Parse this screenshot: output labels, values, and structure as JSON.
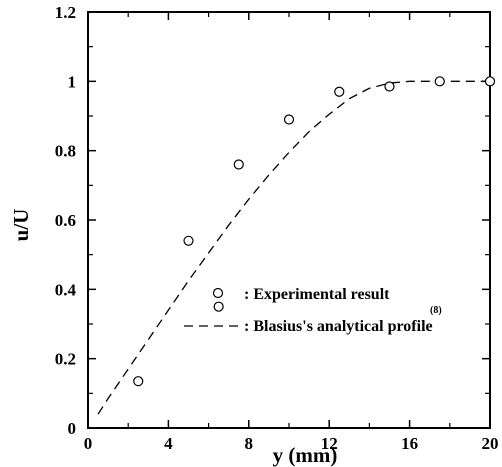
{
  "chart_data": {
    "type": "scatter",
    "xlabel": "y (mm)",
    "ylabel": "u/U",
    "xlim": [
      0,
      20
    ],
    "ylim": [
      0,
      1.2
    ],
    "xticks": [
      "0",
      "4",
      "8",
      "12",
      "16",
      "20"
    ],
    "yticks": [
      "0",
      "0.2",
      "0.4",
      "0.6",
      "0.8",
      "1",
      "1.2"
    ],
    "grid": false,
    "legend_position": "lower-right",
    "series": [
      {
        "name": ": Experimental result",
        "marker": "open-circle",
        "x": [
          2.5,
          5.0,
          6.5,
          7.5,
          10.0,
          12.5,
          15.0,
          17.5,
          20.0
        ],
        "y": [
          0.135,
          0.54,
          0.35,
          0.76,
          0.89,
          0.97,
          0.985,
          1.0,
          1.0
        ]
      },
      {
        "name": ": Blasius's analytical profile",
        "line": "dashed",
        "x": [
          0.5,
          1,
          2,
          3,
          4,
          5,
          6,
          7,
          8,
          9,
          10,
          11,
          12,
          13,
          14,
          15,
          16,
          17,
          18,
          19,
          20
        ],
        "y": [
          0.04,
          0.085,
          0.17,
          0.255,
          0.34,
          0.425,
          0.505,
          0.585,
          0.66,
          0.73,
          0.795,
          0.855,
          0.905,
          0.95,
          0.98,
          0.995,
          1.0,
          1.0,
          1.0,
          1.0,
          1.0
        ]
      }
    ],
    "legend_ref": "(8)"
  }
}
